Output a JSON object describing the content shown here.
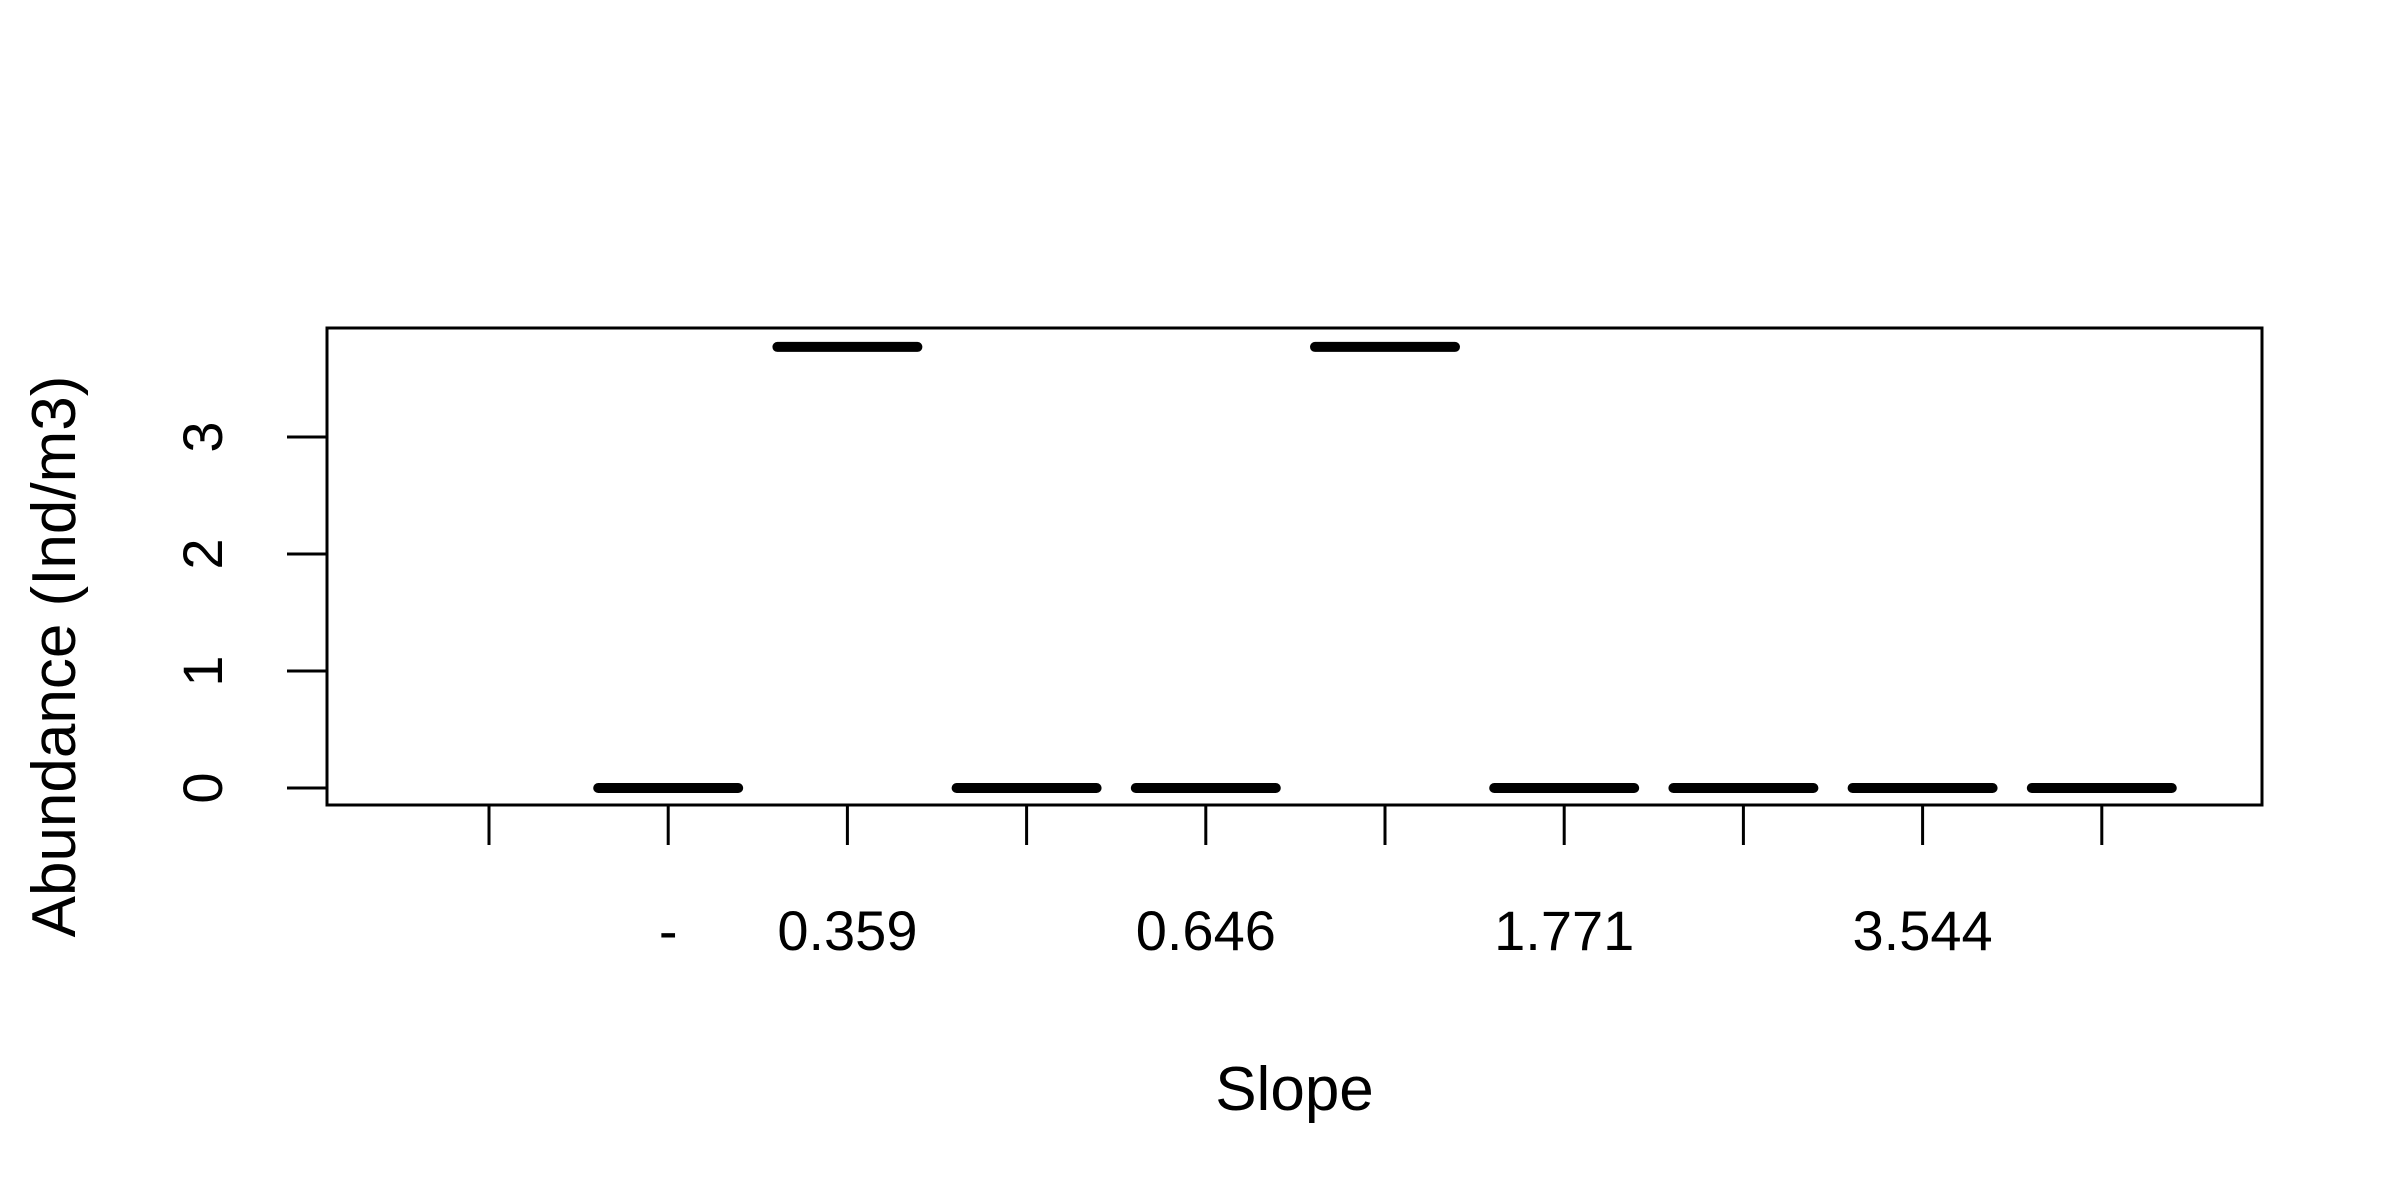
{
  "chart_data": {
    "type": "boxplot",
    "title": "",
    "xlabel": "Slope",
    "ylabel": "Abundance (Ind/m3)",
    "ylim": [
      -0.15,
      3.9
    ],
    "y_ticks": [
      0,
      1,
      2,
      3
    ],
    "x_positions": [
      1,
      2,
      3,
      4,
      5,
      6,
      7,
      8,
      9,
      10
    ],
    "x_tick_labels": [
      "",
      "-",
      "0.359",
      "",
      "0.646",
      "",
      "1.771",
      "",
      "3.544",
      ""
    ],
    "groups": [
      {
        "x": 1,
        "value": null
      },
      {
        "x": 2,
        "value": 0
      },
      {
        "x": 3,
        "value": 3.77
      },
      {
        "x": 4,
        "value": 0
      },
      {
        "x": 5,
        "value": 0
      },
      {
        "x": 6,
        "value": 3.77
      },
      {
        "x": 7,
        "value": 0
      },
      {
        "x": 8,
        "value": 0
      },
      {
        "x": 9,
        "value": 0
      },
      {
        "x": 10,
        "value": 0
      }
    ],
    "grid": false,
    "legend": "none"
  }
}
